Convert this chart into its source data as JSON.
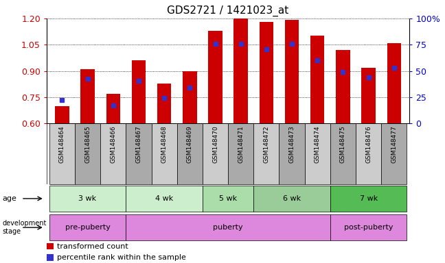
{
  "title": "GDS2721 / 1421023_at",
  "samples": [
    "GSM148464",
    "GSM148465",
    "GSM148466",
    "GSM148467",
    "GSM148468",
    "GSM148469",
    "GSM148470",
    "GSM148471",
    "GSM148472",
    "GSM148473",
    "GSM148474",
    "GSM148475",
    "GSM148476",
    "GSM148477"
  ],
  "bar_values": [
    0.7,
    0.91,
    0.77,
    0.96,
    0.83,
    0.9,
    1.13,
    1.2,
    1.18,
    1.19,
    1.1,
    1.02,
    0.92,
    1.06
  ],
  "percentile_values": [
    0.735,
    0.855,
    0.705,
    0.845,
    0.745,
    0.805,
    1.055,
    1.055,
    1.025,
    1.055,
    0.96,
    0.895,
    0.865,
    0.92
  ],
  "ymin": 0.6,
  "ymax": 1.2,
  "yticks": [
    0.6,
    0.75,
    0.9,
    1.05,
    1.2
  ],
  "bar_color": "#cc0000",
  "percentile_color": "#3333cc",
  "background_color": "#ffffff",
  "age_groups_order": [
    [
      "3 wk",
      0,
      2
    ],
    [
      "4 wk",
      3,
      5
    ],
    [
      "5 wk",
      6,
      7
    ],
    [
      "6 wk",
      8,
      10
    ],
    [
      "7 wk",
      11,
      13
    ]
  ],
  "age_colors": [
    "#cceecc",
    "#cceecc",
    "#aaddaa",
    "#99cc99",
    "#55bb55"
  ],
  "dev_groups_order": [
    [
      "pre-puberty",
      0,
      2
    ],
    [
      "puberty",
      3,
      10
    ],
    [
      "post-puberty",
      11,
      13
    ]
  ],
  "dev_color": "#dd88dd",
  "right_yticks": [
    0,
    25,
    50,
    75,
    100
  ],
  "right_yticklabels": [
    "0",
    "25",
    "50",
    "75",
    "100%"
  ]
}
